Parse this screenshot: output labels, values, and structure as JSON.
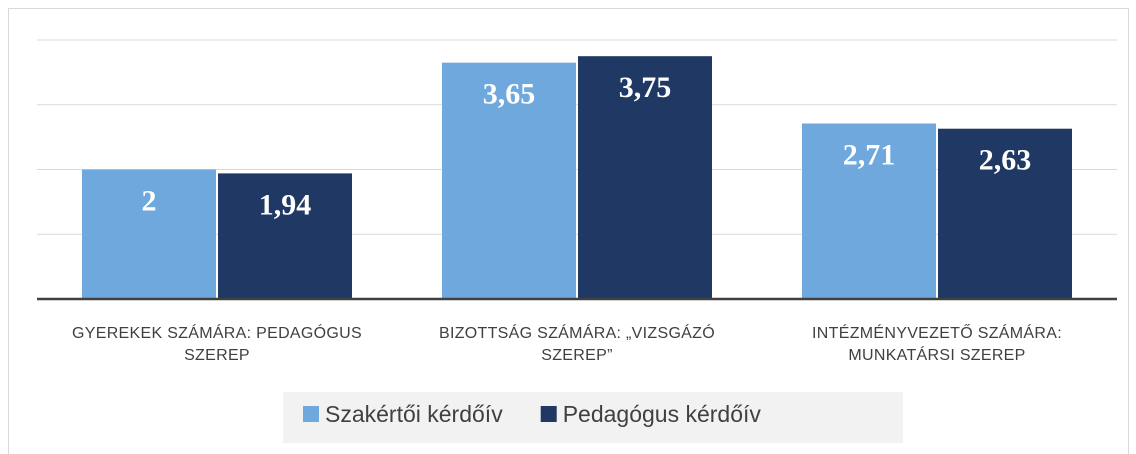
{
  "chart_data": {
    "type": "bar",
    "categories": [
      "GYEREKEK SZÁMÁRA: PEDAGÓGUS SZEREP",
      "BIZOTTSÁG SZÁMÁRA: „VIZSGÁZÓ SZEREP”",
      "INTÉZMÉNYVEZETŐ SZÁMÁRA: MUNKATÁRSI SZEREP"
    ],
    "series": [
      {
        "name": "Szakértői kérdőív",
        "color": "#6fa8dc",
        "values": [
          2,
          3.65,
          2.71
        ],
        "value_labels": [
          "2",
          "3,65",
          "2,71"
        ]
      },
      {
        "name": "Pedagógus kérdőív",
        "color": "#1f3864",
        "values": [
          1.94,
          3.75,
          2.63
        ],
        "value_labels": [
          "1,94",
          "3,75",
          "2,63"
        ]
      }
    ],
    "ylim": [
      0,
      4
    ],
    "yticks": [
      0,
      1,
      2,
      3,
      4
    ],
    "grid": true,
    "legend": "bottom"
  }
}
